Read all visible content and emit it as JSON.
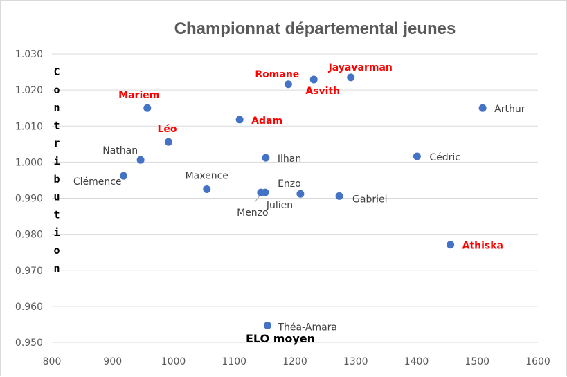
{
  "chart_data": {
    "type": "scatter",
    "title": "Championnat départemental jeunes",
    "xlabel": "ELO moyen",
    "ylabel": "Contribution",
    "xlim": [
      800,
      1600
    ],
    "ylim": [
      0.95,
      1.03
    ],
    "x_ticks": [
      "800",
      "900",
      "1000",
      "1100",
      "1200",
      "1300",
      "1400",
      "1500",
      "1600"
    ],
    "y_ticks": [
      "0.950",
      "0.960",
      "0.970",
      "0.980",
      "0.990",
      "1.000",
      "1.010",
      "1.020",
      "1.030"
    ],
    "grid": "horizontal",
    "marker_color": "#4472C4",
    "label_color": "#404040",
    "highlight_color": "#FF0000",
    "points": [
      {
        "name": "Mariem",
        "x": 957,
        "y": 1.015,
        "highlight": true
      },
      {
        "name": "Léo",
        "x": 992,
        "y": 1.0056,
        "highlight": true
      },
      {
        "name": "Nathan",
        "x": 946,
        "y": 1.0006,
        "highlight": false
      },
      {
        "name": "Clémence",
        "x": 918,
        "y": 0.9962,
        "highlight": false
      },
      {
        "name": "Maxence",
        "x": 1055,
        "y": 0.9925,
        "highlight": false
      },
      {
        "name": "Adam",
        "x": 1109,
        "y": 1.0118,
        "highlight": true
      },
      {
        "name": "Ilhan",
        "x": 1152,
        "y": 1.0012,
        "highlight": false
      },
      {
        "name": "Menzo",
        "x": 1144,
        "y": 0.9916,
        "highlight": false
      },
      {
        "name": "Julien",
        "x": 1151,
        "y": 0.9916,
        "highlight": false
      },
      {
        "name": "Enzo",
        "x": 1209,
        "y": 0.9912,
        "highlight": false
      },
      {
        "name": "Romane",
        "x": 1189,
        "y": 1.0216,
        "highlight": true
      },
      {
        "name": "Asvith",
        "x": 1231,
        "y": 1.0229,
        "highlight": true
      },
      {
        "name": "Jayavarman",
        "x": 1292,
        "y": 1.0235,
        "highlight": true
      },
      {
        "name": "Gabriel",
        "x": 1273,
        "y": 0.9906,
        "highlight": false
      },
      {
        "name": "Cédric",
        "x": 1401,
        "y": 1.0016,
        "highlight": false
      },
      {
        "name": "Arthur",
        "x": 1509,
        "y": 1.015,
        "highlight": false
      },
      {
        "name": "Athiska",
        "x": 1456,
        "y": 0.9771,
        "highlight": true
      },
      {
        "name": "Théa-Amara",
        "x": 1155,
        "y": 0.9547,
        "highlight": false
      }
    ]
  }
}
